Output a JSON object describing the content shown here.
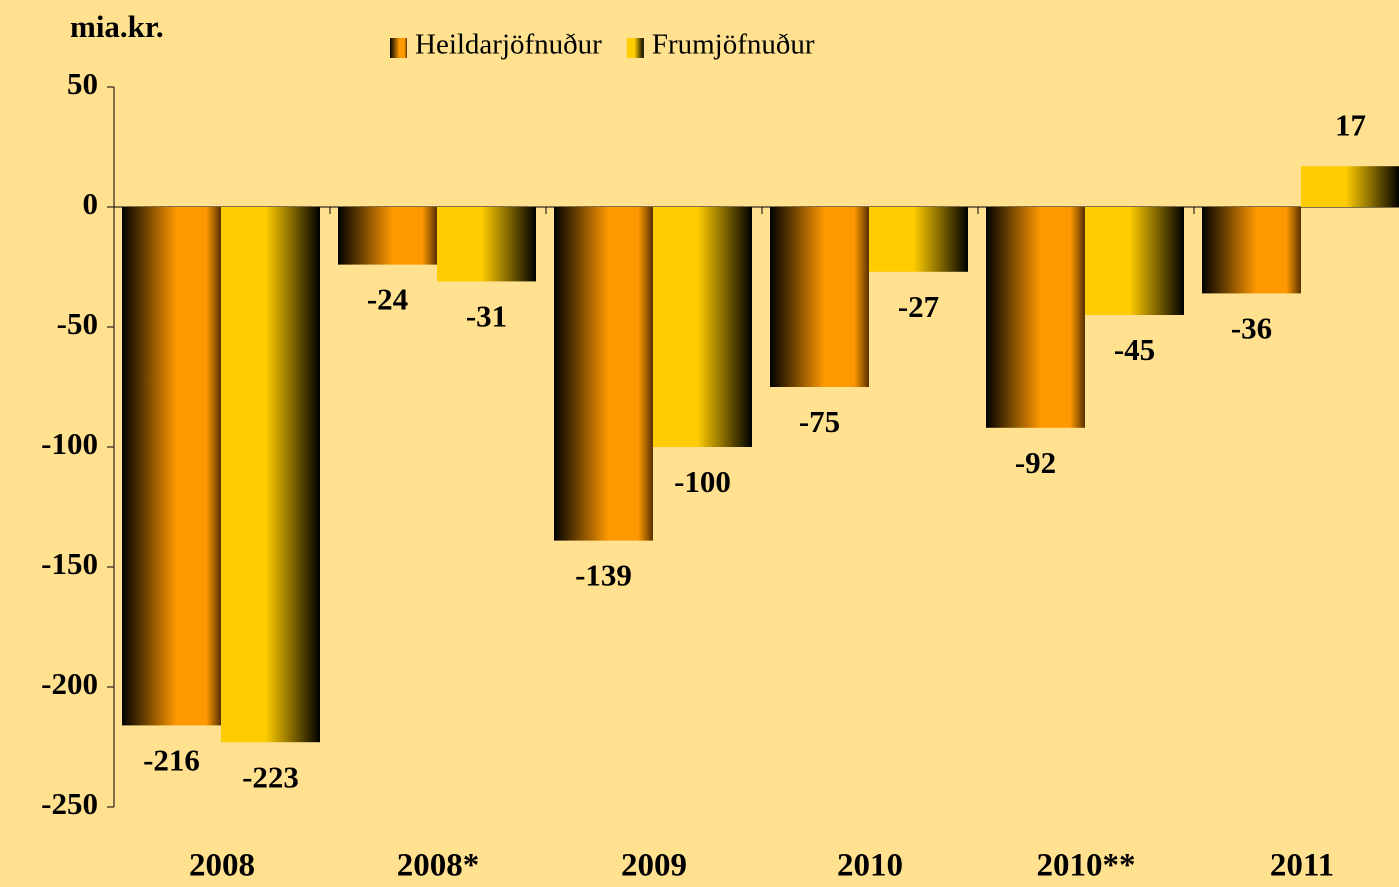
{
  "chart_data": {
    "type": "bar",
    "y_label": "mia.kr.",
    "categories": [
      "2008",
      "2008*",
      "2009",
      "2010",
      "2010**",
      "2011"
    ],
    "series": [
      {
        "name": "Heildarjöfnuður",
        "color": "#FF9900",
        "values": [
          -216,
          -24,
          -139,
          -75,
          -92,
          -36
        ]
      },
      {
        "name": "Frumjöfnuður",
        "color": "#FFCC00",
        "values": [
          -223,
          -31,
          -100,
          -27,
          -45,
          17
        ]
      }
    ],
    "ylim": [
      -250,
      50
    ],
    "yticks": [
      50,
      0,
      -50,
      -100,
      -150,
      -200,
      -250
    ]
  }
}
